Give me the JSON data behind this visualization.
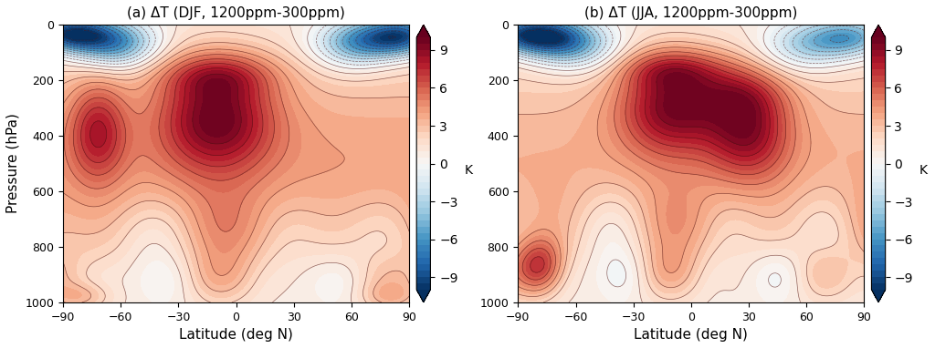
{
  "title_a": "(a) ΔT (DJF, 1200ppm-300ppm)",
  "title_b": "(b) ΔT (JJA, 1200ppm-300ppm)",
  "xlabel": "Latitude (deg N)",
  "ylabel": "Pressure (hPa)",
  "cbar_label": "K",
  "lat_min": -90,
  "lat_max": 90,
  "p_min": 0,
  "p_max": 1000,
  "vmin": -10,
  "vmax": 10,
  "clev_min": -10,
  "clev_max": 10,
  "n_levels": 41,
  "yticks": [
    0,
    200,
    400,
    600,
    800,
    1000
  ],
  "xticks": [
    -90,
    -60,
    -30,
    0,
    30,
    60,
    90
  ],
  "cbar_ticks": [
    -9,
    -6,
    -3,
    0,
    3,
    6,
    9
  ]
}
